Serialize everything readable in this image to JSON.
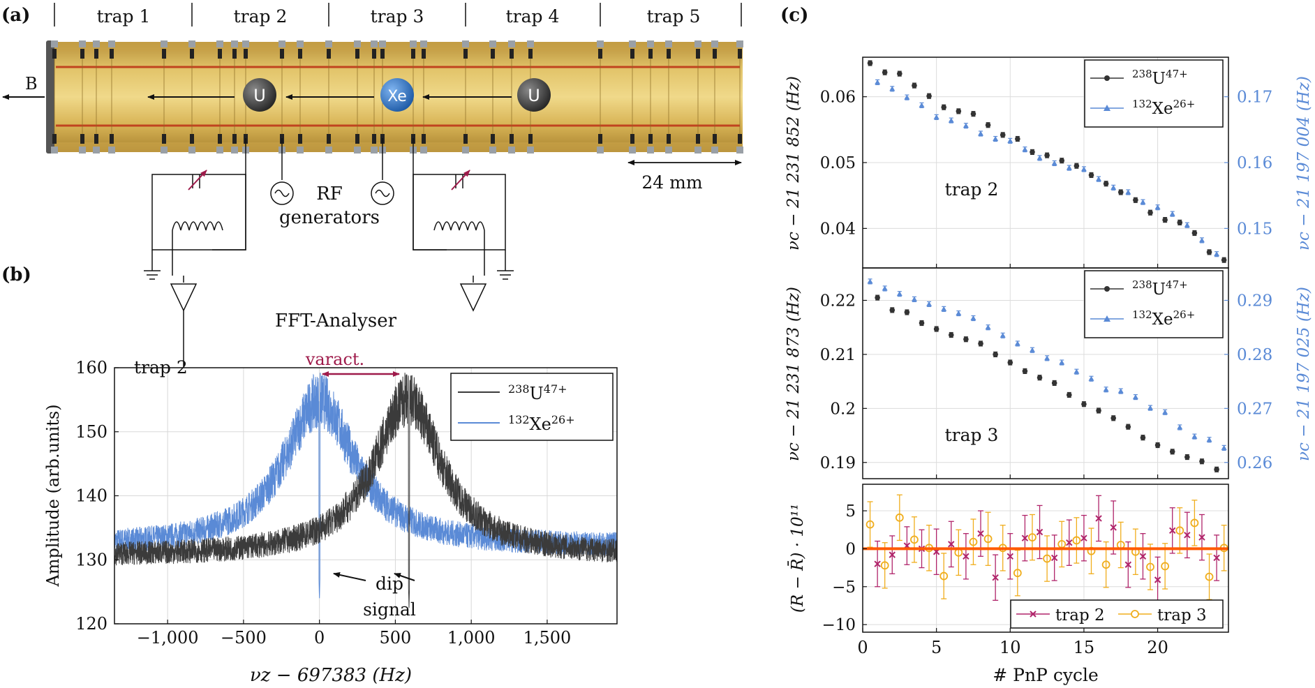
{
  "panel_labels": {
    "a": "(a)",
    "b": "(b)",
    "c": "(c)"
  },
  "schematic": {
    "trap_labels": [
      "trap 1",
      "trap 2",
      "trap 3",
      "trap 4",
      "trap 5"
    ],
    "b_field_label": "B",
    "ions": [
      "U",
      "Xe",
      "U"
    ],
    "scale_label": "24 mm",
    "rf_label": "RF",
    "generators_label": "generators",
    "fft_label": "FFT-Analyser",
    "colors": {
      "electrode": "#c9a349",
      "electrode_gold": "#d8b456",
      "wire": "#c0441f",
      "u_ion": "#3a3a3a",
      "xe_ion": "#2d6fb8",
      "varactor": "#9e1a4a"
    }
  },
  "chart_data": [
    {
      "id": "spectrum",
      "type": "line",
      "title": "",
      "xlabel": "νz − 697383 (Hz)",
      "ylabel": "Amplitude (arb.units)",
      "xlim": [
        -1350,
        1960
      ],
      "ylim": [
        120,
        160
      ],
      "xticks": [
        -1000,
        -500,
        0,
        500,
        1000,
        1500
      ],
      "xtick_labels": [
        "−1,000",
        "−500",
        "0",
        "500",
        "1,000",
        "1,500"
      ],
      "yticks": [
        120,
        130,
        140,
        150,
        160
      ],
      "ytick_labels": [
        "120",
        "130",
        "140",
        "150",
        "160"
      ],
      "grid": true,
      "legend_position": "top-right",
      "inset_label": "trap 2",
      "annotations": {
        "varactor": "varact.",
        "dip_line1": "dip",
        "dip_line2": "signal"
      },
      "series": [
        {
          "name": "238U47+",
          "name_parts": [
            "238",
            "U",
            "47+"
          ],
          "color": "#3b3b3b",
          "center": 580,
          "peak": 155,
          "baseline": 130.5,
          "width": 270,
          "dip_at": 590
        },
        {
          "name": "132Xe26+",
          "name_parts": [
            "132",
            "Xe",
            "26+"
          ],
          "color": "#5a8ad6",
          "center": 0,
          "peak": 155,
          "baseline": 132,
          "width": 280,
          "dip_at": 0
        }
      ]
    },
    {
      "id": "trap2-frequency",
      "type": "scatter",
      "inset_label": "trap 2",
      "ylabel_left": "νc − 21 231 852 (Hz)",
      "ylabel_right": "νc − 21 197 004 (Hz)",
      "xlim": [
        0,
        24.8
      ],
      "ylim_left": [
        0.034,
        0.066
      ],
      "ylim_right": [
        0.144,
        0.176
      ],
      "yticks_left": [
        0.04,
        0.05,
        0.06
      ],
      "ytick_labels_left": [
        "0.04",
        "0.05",
        "0.06"
      ],
      "yticks_right": [
        0.15,
        0.16,
        0.17
      ],
      "ytick_labels_right": [
        "0.15",
        "0.16",
        "0.17"
      ],
      "grid": true,
      "legend_position": "top-right",
      "series": [
        {
          "name": "238U47+",
          "name_parts": [
            "238",
            "U",
            "47+"
          ],
          "axis": "left",
          "marker": "circle",
          "color": "#333333",
          "x": [
            0.5,
            1.5,
            2.5,
            3.5,
            4.5,
            5.5,
            6.5,
            7.5,
            8.5,
            9.5,
            10.5,
            11.5,
            12.5,
            13.5,
            14.5,
            15.5,
            16.5,
            17.5,
            18.5,
            19.5,
            20.5,
            21.5,
            22.5,
            23.5,
            24.5
          ],
          "y": [
            0.0651,
            0.0637,
            0.0635,
            0.0617,
            0.0601,
            0.0584,
            0.0578,
            0.0574,
            0.0557,
            0.0542,
            0.0536,
            0.0516,
            0.0511,
            0.0503,
            0.0495,
            0.0481,
            0.0468,
            0.0455,
            0.0443,
            0.0424,
            0.0413,
            0.0409,
            0.0393,
            0.0364,
            0.0352
          ]
        },
        {
          "name": "132Xe26+",
          "name_parts": [
            "132",
            "Xe",
            "26+"
          ],
          "axis": "right",
          "marker": "triangle",
          "color": "#5a8ad6",
          "x": [
            1,
            2,
            3,
            4,
            5,
            6,
            7,
            8,
            9,
            10,
            11,
            12,
            13,
            14,
            15,
            16,
            17,
            18,
            19,
            20,
            21,
            22,
            23,
            24
          ],
          "y": [
            0.1722,
            0.1712,
            0.1699,
            0.1687,
            0.1669,
            0.1664,
            0.1656,
            0.1644,
            0.1636,
            0.1633,
            0.162,
            0.1607,
            0.1599,
            0.1592,
            0.159,
            0.1575,
            0.1562,
            0.1555,
            0.154,
            0.1532,
            0.1522,
            0.1505,
            0.1482,
            0.1461
          ]
        }
      ]
    },
    {
      "id": "trap3-frequency",
      "type": "scatter",
      "inset_label": "trap 3",
      "ylabel_left": "νc − 21 231 873 (Hz)",
      "ylabel_right": "νc − 21 197 025 (Hz)",
      "xlim": [
        0,
        24.8
      ],
      "ylim_left": [
        0.187,
        0.226
      ],
      "ylim_right": [
        0.257,
        0.296
      ],
      "yticks_left": [
        0.19,
        0.2,
        0.21,
        0.22
      ],
      "ytick_labels_left": [
        "0.19",
        "0.2",
        "0.21",
        "0.22"
      ],
      "yticks_right": [
        0.26,
        0.27,
        0.28,
        0.29
      ],
      "ytick_labels_right": [
        "0.26",
        "0.27",
        "0.28",
        "0.29"
      ],
      "grid": true,
      "legend_position": "top-right",
      "series": [
        {
          "name": "238U47+",
          "name_parts": [
            "238",
            "U",
            "47+"
          ],
          "axis": "left",
          "marker": "circle",
          "color": "#333333",
          "x": [
            1,
            2,
            3,
            4,
            5,
            6,
            7,
            8,
            9,
            10,
            11,
            12,
            13,
            14,
            15,
            16,
            17,
            18,
            19,
            20,
            21,
            22,
            23,
            24
          ],
          "y": [
            0.2205,
            0.2182,
            0.2178,
            0.2158,
            0.2147,
            0.2136,
            0.2128,
            0.212,
            0.21,
            0.2085,
            0.2069,
            0.2057,
            0.2047,
            0.2025,
            0.2008,
            0.1996,
            0.1982,
            0.1966,
            0.1946,
            0.1932,
            0.192,
            0.191,
            0.1902,
            0.1887
          ]
        },
        {
          "name": "132Xe26+",
          "name_parts": [
            "132",
            "Xe",
            "26+"
          ],
          "axis": "right",
          "marker": "triangle",
          "color": "#5a8ad6",
          "x": [
            0.5,
            1.5,
            2.5,
            3.5,
            4.5,
            5.5,
            6.5,
            7.5,
            8.5,
            9.5,
            10.5,
            11.5,
            12.5,
            13.5,
            14.5,
            15.5,
            16.5,
            17.5,
            18.5,
            19.5,
            20.5,
            21.5,
            22.5,
            23.5,
            24.5
          ],
          "y": [
            0.2935,
            0.2922,
            0.2912,
            0.2902,
            0.2893,
            0.2884,
            0.2876,
            0.2867,
            0.285,
            0.2835,
            0.282,
            0.2808,
            0.2793,
            0.2785,
            0.2768,
            0.2755,
            0.2735,
            0.2732,
            0.2721,
            0.2701,
            0.2693,
            0.2665,
            0.2648,
            0.2642,
            0.2627
          ]
        }
      ]
    },
    {
      "id": "ratio-residuals",
      "type": "scatter",
      "ylabel": "(R − R̄) · 10¹¹",
      "xlabel": "# PnP cycle",
      "xlim": [
        0,
        24.8
      ],
      "ylim": [
        -11,
        8.5
      ],
      "xticks": [
        0,
        5,
        10,
        15,
        20
      ],
      "xtick_labels": [
        "0",
        "5",
        "10",
        "15",
        "20"
      ],
      "yticks": [
        -10,
        -5,
        0,
        5
      ],
      "ytick_labels": [
        "−10",
        "−5",
        "0",
        "5"
      ],
      "grid": true,
      "legend_position": "bottom-right",
      "zero_line_color": "#ff5a00",
      "series": [
        {
          "name": "trap 2",
          "marker": "cross",
          "color": "#b0246a",
          "x": [
            1,
            2,
            3,
            4,
            5,
            6,
            7,
            8,
            9,
            10,
            11,
            12,
            13,
            14,
            15,
            16,
            17,
            18,
            19,
            20,
            21,
            22,
            23,
            24
          ],
          "y": [
            -2,
            -0.8,
            0.4,
            0,
            -0.4,
            0.6,
            -1,
            2,
            -3.8,
            -1,
            1.4,
            2.2,
            -1.2,
            0.8,
            1.4,
            4,
            2.8,
            -2.1,
            -1,
            -4.1,
            2.4,
            1.8,
            1.5,
            -1.2
          ],
          "err": [
            3,
            2.5,
            2.5,
            2.5,
            3,
            3,
            3,
            3,
            3,
            3,
            3,
            3.5,
            3,
            3,
            3,
            3,
            3.5,
            3,
            3,
            3,
            3,
            3,
            3,
            3
          ]
        },
        {
          "name": "trap 3",
          "marker": "circle-open",
          "color": "#f0ad1c",
          "x": [
            0.5,
            1.5,
            2.5,
            3.5,
            4.5,
            5.5,
            6.5,
            7.5,
            8.5,
            9.5,
            10.5,
            11.5,
            12.5,
            13.5,
            14.5,
            15.5,
            16.5,
            17.5,
            18.5,
            19.5,
            20.5,
            21.5,
            22.5,
            23.5,
            24.5
          ],
          "y": [
            3.2,
            -2.2,
            4.1,
            1.2,
            0.1,
            -3.6,
            -0.5,
            0.9,
            1.3,
            0.1,
            -3.2,
            1.5,
            -1.3,
            0.6,
            1.1,
            -0.3,
            -2.1,
            0.5,
            -0.4,
            -2.4,
            -2.3,
            2.4,
            3.4,
            -3.7,
            0.1
          ],
          "err": [
            3,
            3,
            3,
            3,
            3,
            3,
            3,
            3,
            3.5,
            3,
            3,
            3,
            3,
            3,
            3,
            3,
            3,
            3,
            3,
            3,
            3,
            3,
            3,
            3,
            3
          ]
        }
      ]
    }
  ]
}
